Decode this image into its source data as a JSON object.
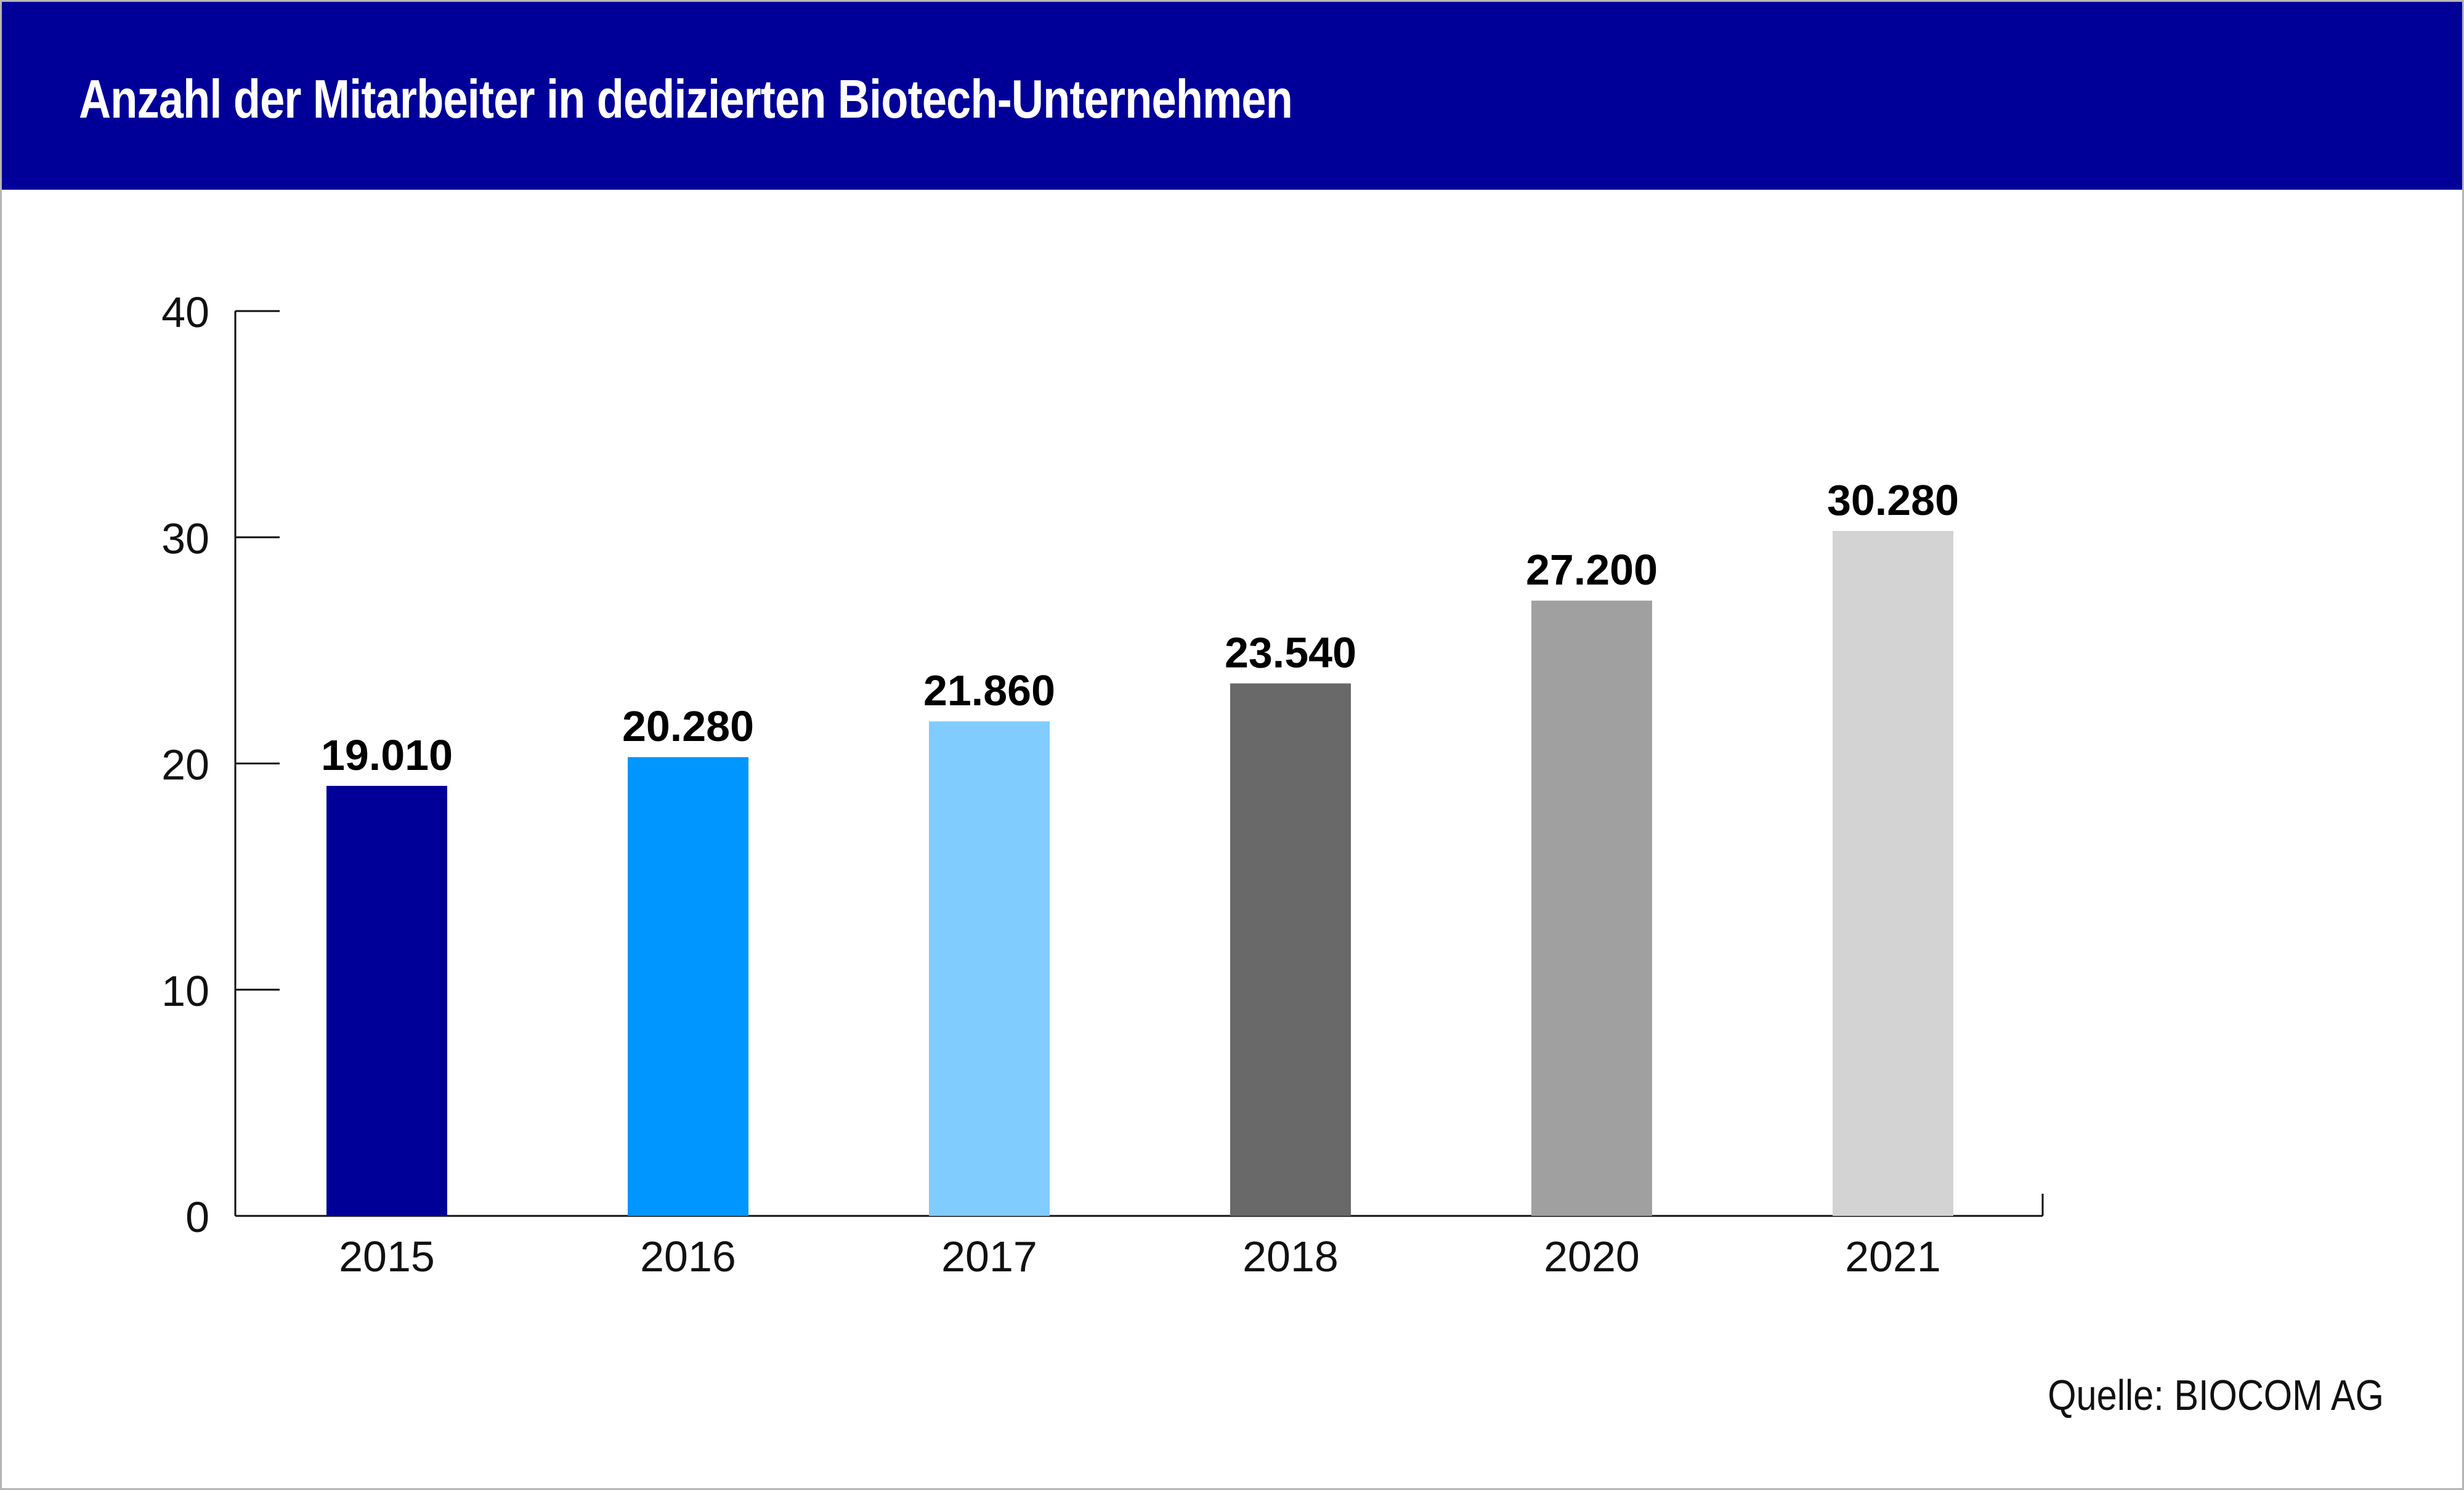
{
  "chart_data": {
    "type": "bar",
    "title": "Anzahl der Mitarbeiter in dedizierten Biotech-Unternehmen",
    "categories": [
      "2015",
      "2016",
      "2017",
      "2018",
      "2020",
      "2021"
    ],
    "values": [
      19.01,
      20.28,
      21.86,
      23.54,
      27.2,
      30.28
    ],
    "value_labels": [
      "19.010",
      "20.280",
      "21.860",
      "23.540",
      "27.200",
      "30.280"
    ],
    "bar_colors": [
      "#000099",
      "#0096ff",
      "#80ccff",
      "#696969",
      "#a0a0a0",
      "#d3d3d3"
    ],
    "ylim": [
      0,
      40
    ],
    "yticks": [
      0,
      10,
      20,
      30,
      40
    ],
    "xlabel": "",
    "ylabel": "",
    "grid": false,
    "legend": "none",
    "source": "Quelle: BIOCOM AG"
  },
  "colors": {
    "header_background": "#000099",
    "header_text": "#ffffff",
    "frame_border": "#b5b5b5"
  }
}
